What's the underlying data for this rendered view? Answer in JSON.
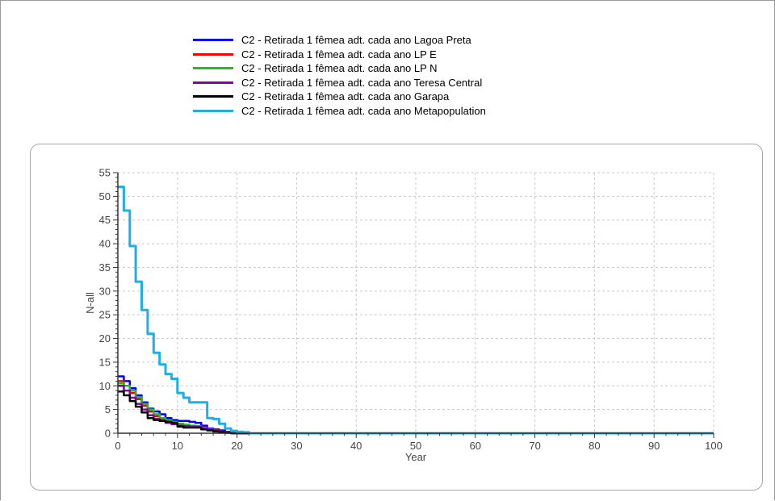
{
  "chart_data": {
    "type": "line",
    "xlabel": "Year",
    "ylabel": "N-all",
    "xlim": [
      0,
      100
    ],
    "ylim": [
      0,
      55
    ],
    "xticks": [
      0,
      10,
      20,
      30,
      40,
      50,
      60,
      70,
      80,
      90,
      100
    ],
    "yticks": [
      0,
      5,
      10,
      15,
      20,
      25,
      30,
      35,
      40,
      45,
      50,
      55
    ],
    "grid": true,
    "legend_position": "top-center",
    "series": [
      {
        "name": "C2 - Retirada 1 fêmea adt. cada ano Lagoa Preta",
        "color": "#0000ff",
        "points": [
          [
            0,
            12
          ],
          [
            1,
            11
          ],
          [
            2,
            9.5
          ],
          [
            3,
            8
          ],
          [
            4,
            6.5
          ],
          [
            5,
            5.2
          ],
          [
            6,
            4.6
          ],
          [
            7,
            4
          ],
          [
            8,
            3.2
          ],
          [
            9,
            2.8
          ],
          [
            10,
            2.6
          ],
          [
            11,
            2.6
          ],
          [
            12,
            2.4
          ],
          [
            13,
            2.2
          ],
          [
            14,
            1.6
          ],
          [
            15,
            1.0
          ],
          [
            16,
            0.8
          ],
          [
            17,
            0.6
          ],
          [
            18,
            0.3
          ],
          [
            19,
            0.1
          ],
          [
            20,
            0
          ],
          [
            100,
            0
          ]
        ]
      },
      {
        "name": "C2 - Retirada 1 fêmea adt. cada ano LP E",
        "color": "#ff0000",
        "points": [
          [
            0,
            11
          ],
          [
            1,
            10
          ],
          [
            2,
            8.5
          ],
          [
            3,
            7.2
          ],
          [
            4,
            5.8
          ],
          [
            5,
            4.6
          ],
          [
            6,
            3.6
          ],
          [
            7,
            3.0
          ],
          [
            8,
            2.6
          ],
          [
            9,
            2.3
          ],
          [
            10,
            1.8
          ],
          [
            11,
            1.6
          ],
          [
            12,
            1.5
          ],
          [
            13,
            1.5
          ],
          [
            14,
            1.2
          ],
          [
            15,
            0.8
          ],
          [
            16,
            0.6
          ],
          [
            17,
            0.4
          ],
          [
            18,
            0.2
          ],
          [
            19,
            0.05
          ],
          [
            20,
            0
          ],
          [
            100,
            0
          ]
        ]
      },
      {
        "name": "C2 - Retirada 1 fêmea adt. cada ano LP N",
        "color": "#22bb22",
        "points": [
          [
            0,
            10.5
          ],
          [
            1,
            10
          ],
          [
            2,
            9
          ],
          [
            3,
            7.6
          ],
          [
            4,
            6.2
          ],
          [
            5,
            5
          ],
          [
            6,
            4
          ],
          [
            7,
            3.2
          ],
          [
            8,
            2.8
          ],
          [
            9,
            2.4
          ],
          [
            10,
            2
          ],
          [
            11,
            1.8
          ],
          [
            12,
            1.6
          ],
          [
            13,
            1.4
          ],
          [
            14,
            1.1
          ],
          [
            15,
            0.8
          ],
          [
            16,
            0.5
          ],
          [
            17,
            0.3
          ],
          [
            18,
            0.1
          ],
          [
            19,
            0
          ],
          [
            100,
            0
          ]
        ]
      },
      {
        "name": "C2 - Retirada 1 fêmea adt. cada ano Teresa Central",
        "color": "#8800aa",
        "points": [
          [
            0,
            10
          ],
          [
            1,
            9
          ],
          [
            2,
            7.5
          ],
          [
            3,
            6.2
          ],
          [
            4,
            5
          ],
          [
            5,
            3.8
          ],
          [
            6,
            3
          ],
          [
            7,
            2.6
          ],
          [
            8,
            2.2
          ],
          [
            9,
            1.9
          ],
          [
            10,
            1.6
          ],
          [
            11,
            1.5
          ],
          [
            12,
            1.4
          ],
          [
            13,
            1.3
          ],
          [
            14,
            1.0
          ],
          [
            15,
            0.7
          ],
          [
            16,
            0.5
          ],
          [
            17,
            0.3
          ],
          [
            18,
            0.1
          ],
          [
            19,
            0
          ],
          [
            100,
            0
          ]
        ]
      },
      {
        "name": "C2 - Retirada 1 fêmea adt. cada ano Garapa",
        "color": "#000000",
        "points": [
          [
            0,
            8.8
          ],
          [
            1,
            8
          ],
          [
            2,
            6.8
          ],
          [
            3,
            5.6
          ],
          [
            4,
            4.4
          ],
          [
            5,
            3.2
          ],
          [
            6,
            2.8
          ],
          [
            7,
            2.6
          ],
          [
            8,
            2.4
          ],
          [
            9,
            2.2
          ],
          [
            10,
            1.4
          ],
          [
            11,
            1.2
          ],
          [
            12,
            1.2
          ],
          [
            13,
            1.2
          ],
          [
            14,
            0.8
          ],
          [
            15,
            0.6
          ],
          [
            16,
            0.4
          ],
          [
            17,
            0.2
          ],
          [
            18,
            0.1
          ],
          [
            19,
            0
          ],
          [
            100,
            0
          ]
        ]
      },
      {
        "name": "C2 - Retirada 1 fêmea adt. cada ano Metapopulation",
        "color": "#1eaee8",
        "points": [
          [
            0,
            52
          ],
          [
            1,
            47
          ],
          [
            2,
            39.5
          ],
          [
            3,
            32
          ],
          [
            4,
            26
          ],
          [
            5,
            21
          ],
          [
            6,
            17
          ],
          [
            7,
            14.5
          ],
          [
            8,
            12.5
          ],
          [
            9,
            11.5
          ],
          [
            10,
            8.5
          ],
          [
            11,
            7.5
          ],
          [
            12,
            6.5
          ],
          [
            13,
            6.5
          ],
          [
            14,
            6.5
          ],
          [
            15,
            3.2
          ],
          [
            16,
            3
          ],
          [
            17,
            2
          ],
          [
            18,
            1
          ],
          [
            19,
            0.5
          ],
          [
            20,
            0.3
          ],
          [
            21,
            0.2
          ],
          [
            22,
            0
          ],
          [
            100,
            0
          ]
        ]
      }
    ]
  }
}
